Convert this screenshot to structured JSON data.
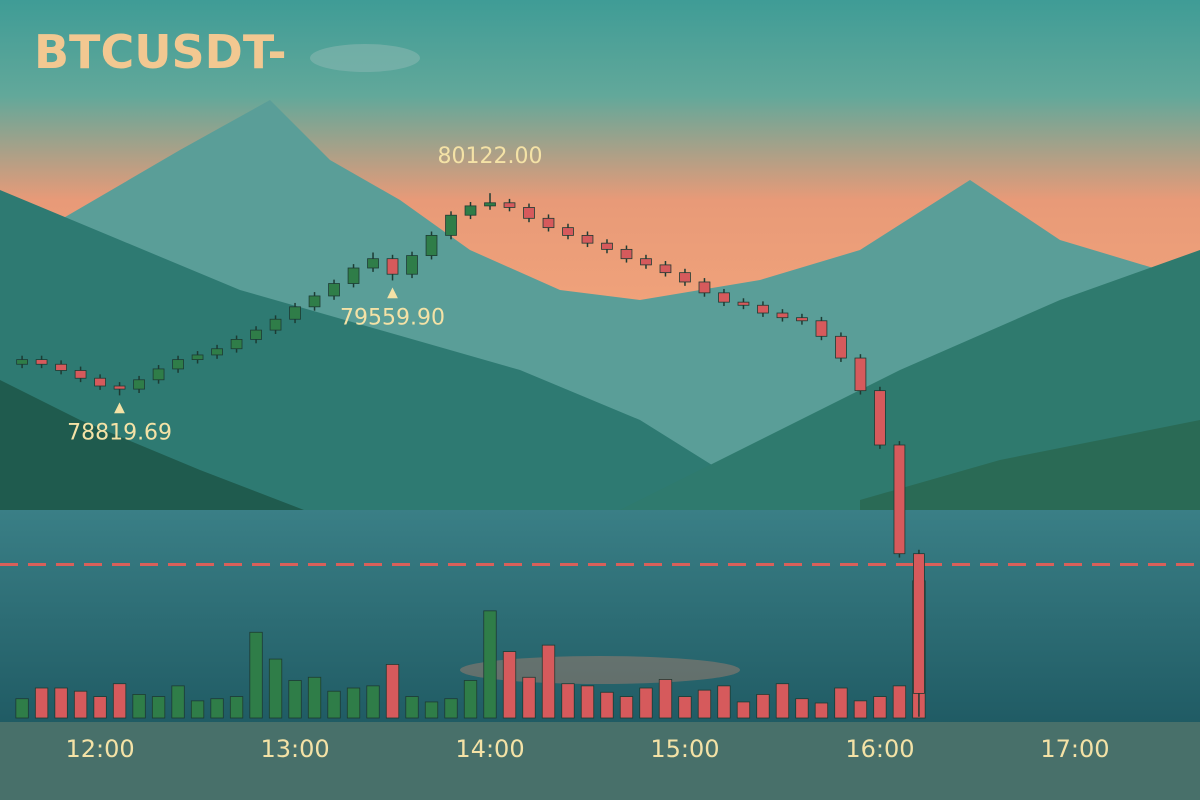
{
  "chart_data": {
    "type": "candlestick",
    "title": "BTCUSDT-",
    "x": [
      696,
      702,
      708,
      714,
      720,
      726,
      732,
      738,
      744,
      750,
      756,
      762,
      768,
      774,
      780,
      786,
      792,
      798,
      804,
      810,
      816,
      822,
      828,
      834,
      840,
      846,
      852,
      858,
      864,
      870,
      876,
      882,
      888,
      894,
      900,
      906,
      912,
      918,
      924,
      930,
      936,
      942,
      948,
      954,
      960,
      966,
      972
    ],
    "open": [
      79020,
      79050,
      79020,
      78980,
      78930,
      78880,
      78860,
      78920,
      78990,
      79050,
      79080,
      79120,
      79180,
      79240,
      79310,
      79390,
      79460,
      79540,
      79640,
      79700,
      79600,
      79720,
      79850,
      79980,
      80040,
      80060,
      80030,
      79960,
      79900,
      79850,
      79800,
      79760,
      79700,
      79660,
      79610,
      79550,
      79480,
      79420,
      79400,
      79350,
      79320,
      79300,
      79200,
      79060,
      78850,
      78500,
      77800
    ],
    "high": [
      79075,
      79075,
      79045,
      79005,
      78955,
      78905,
      78945,
      79015,
      79075,
      79105,
      79145,
      79205,
      79265,
      79335,
      79415,
      79485,
      79565,
      79665,
      79740,
      79725,
      79745,
      79875,
      80005,
      80065,
      80122,
      80085,
      80055,
      79985,
      79925,
      79875,
      79825,
      79785,
      79725,
      79685,
      79635,
      79575,
      79505,
      79445,
      79425,
      79375,
      79345,
      79325,
      79225,
      79085,
      78875,
      78525,
      77825
    ],
    "low": [
      78995,
      78995,
      78955,
      78905,
      78855,
      78819.69,
      78835,
      78895,
      78965,
      79025,
      79055,
      79095,
      79155,
      79215,
      79285,
      79365,
      79435,
      79515,
      79615,
      79559.9,
      79575,
      79695,
      79825,
      79955,
      80015,
      80005,
      79935,
      79875,
      79825,
      79775,
      79735,
      79675,
      79635,
      79585,
      79525,
      79455,
      79395,
      79375,
      79325,
      79295,
      79275,
      79175,
      79035,
      78825,
      78475,
      77775,
      76750
    ],
    "close": [
      79050,
      79020,
      78980,
      78930,
      78880,
      78860,
      78920,
      78990,
      79050,
      79080,
      79120,
      79180,
      79240,
      79310,
      79390,
      79460,
      79540,
      79640,
      79700,
      79600,
      79720,
      79850,
      79980,
      80040,
      80060,
      80030,
      79960,
      79900,
      79850,
      79800,
      79760,
      79700,
      79660,
      79610,
      79550,
      79480,
      79420,
      79400,
      79350,
      79320,
      79300,
      79200,
      79060,
      78850,
      78500,
      77800,
      76900
    ],
    "volume": [
      18,
      28,
      28,
      25,
      20,
      32,
      22,
      20,
      30,
      16,
      18,
      20,
      80,
      55,
      35,
      38,
      25,
      28,
      30,
      50,
      20,
      15,
      18,
      35,
      100,
      62,
      38,
      68,
      32,
      30,
      24,
      20,
      28,
      36,
      20,
      26,
      30,
      15,
      22,
      32,
      18,
      14,
      28,
      16,
      20,
      30,
      128
    ],
    "vlim": [
      0,
      140
    ],
    "up_color": "#2f7d48",
    "down_color": "#d65a5c",
    "ylim": [
      76600,
      80400
    ],
    "xlim": [
      689.2,
      1058.5
    ],
    "xticks": [
      {
        "value": 720,
        "label": "12:00"
      },
      {
        "value": 780,
        "label": "13:00"
      },
      {
        "value": 840,
        "label": "14:00"
      },
      {
        "value": 900,
        "label": "15:00"
      },
      {
        "value": 960,
        "label": "16:00"
      },
      {
        "value": 1020,
        "label": "17:00"
      }
    ],
    "reference_line": 77730,
    "annotations": [
      {
        "value": 78819.69,
        "label": "78819.69"
      },
      {
        "value": 79559.9,
        "label": "79559.90"
      },
      {
        "value": 80122,
        "label": "80122.00"
      }
    ]
  }
}
